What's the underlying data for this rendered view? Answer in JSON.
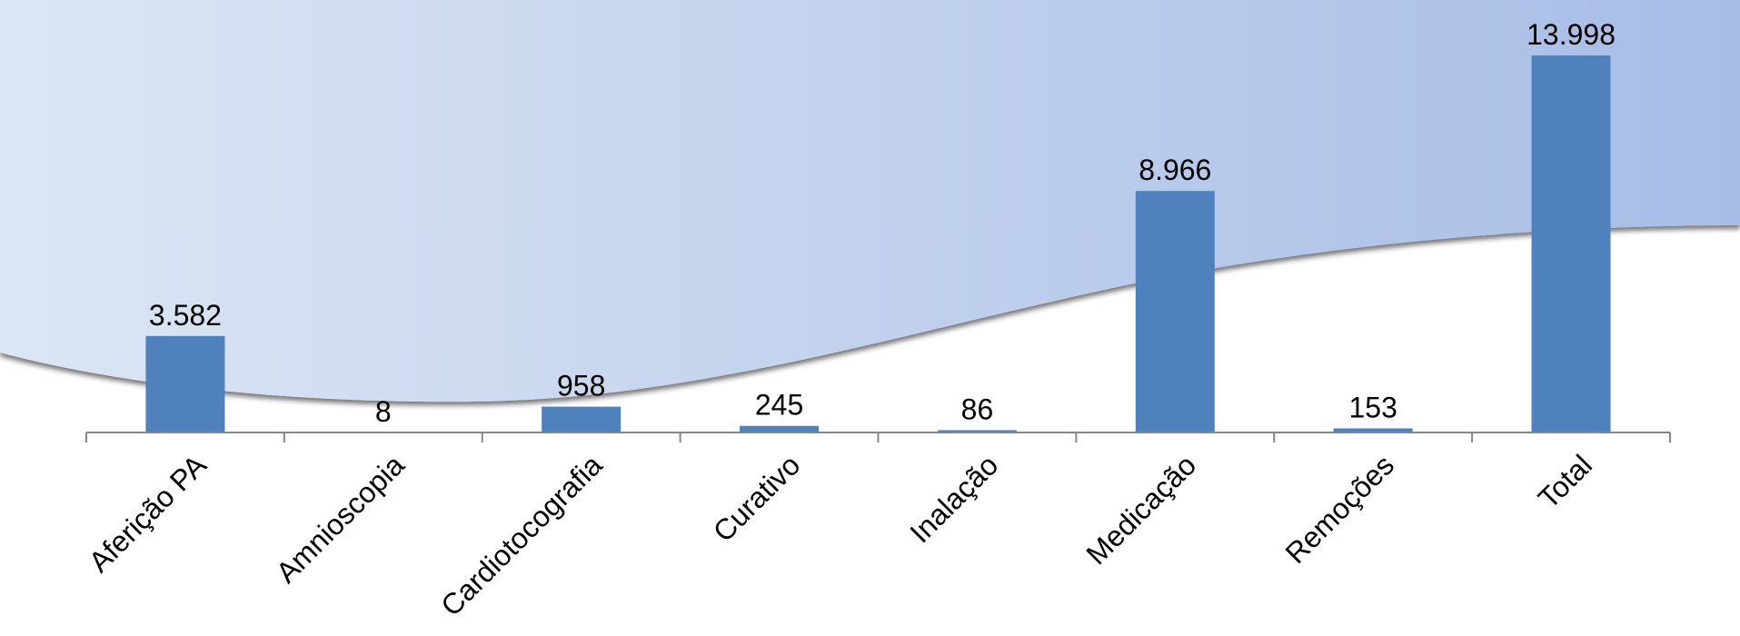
{
  "chart_data": {
    "type": "bar",
    "title": "",
    "xlabel": "",
    "ylabel": "",
    "categories": [
      "Aferição PA",
      "Amnioscopia",
      "Cardiotocografia",
      "Curativo",
      "Inalação",
      "Medicação",
      "Remoções",
      "Total"
    ],
    "values": [
      3582,
      8,
      958,
      245,
      86,
      8966,
      153,
      13998
    ],
    "value_labels": [
      "3.582",
      "8",
      "958",
      "245",
      "86",
      "8.966",
      "153",
      "13.998"
    ],
    "ylim": [
      0,
      13998
    ],
    "grid": false,
    "legend": "none",
    "colors": {
      "bar": "#4f81bd",
      "axis": "#868686",
      "wave_light": "#dce6f4",
      "wave_dark": "#a7bde6"
    }
  }
}
